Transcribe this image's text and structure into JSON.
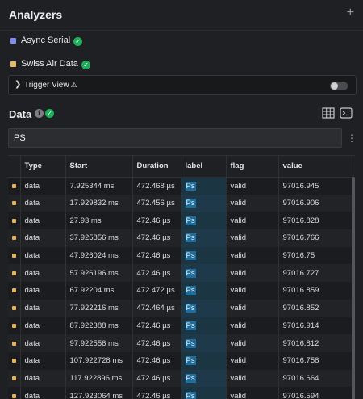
{
  "header": {
    "title": "Analyzers",
    "add_icon": "plus-icon"
  },
  "analyzers": [
    {
      "name": "Async Serial",
      "color": "#7d8ff0",
      "status": "check-icon"
    },
    {
      "name": "Swiss Air Data",
      "color": "#e8b86a",
      "status": "check-icon"
    }
  ],
  "trigger": {
    "label": "Trigger View",
    "warning": "⚠",
    "enabled": false
  },
  "data_panel": {
    "title": "Data",
    "info_glyph": "i",
    "search_value": "PS",
    "table": {
      "columns": [
        "Type",
        "Start",
        "Duration",
        "label",
        "flag",
        "value"
      ],
      "rows": [
        [
          "data",
          "7.925344 ms",
          "472.468 µs",
          "Ps",
          "valid",
          "97016.945"
        ],
        [
          "data",
          "17.929832 ms",
          "472.456 µs",
          "Ps",
          "valid",
          "97016.906"
        ],
        [
          "data",
          "27.93 ms",
          "472.46 µs",
          "Ps",
          "valid",
          "97016.828"
        ],
        [
          "data",
          "37.925856 ms",
          "472.46 µs",
          "Ps",
          "valid",
          "97016.766"
        ],
        [
          "data",
          "47.926024 ms",
          "472.46 µs",
          "Ps",
          "valid",
          "97016.75"
        ],
        [
          "data",
          "57.926196 ms",
          "472.46 µs",
          "Ps",
          "valid",
          "97016.727"
        ],
        [
          "data",
          "67.92204 ms",
          "472.472 µs",
          "Ps",
          "valid",
          "97016.859"
        ],
        [
          "data",
          "77.922216 ms",
          "472.464 µs",
          "Ps",
          "valid",
          "97016.852"
        ],
        [
          "data",
          "87.922388 ms",
          "472.46 µs",
          "Ps",
          "valid",
          "97016.914"
        ],
        [
          "data",
          "97.922556 ms",
          "472.46 µs",
          "Ps",
          "valid",
          "97016.812"
        ],
        [
          "data",
          "107.922728 ms",
          "472.46 µs",
          "Ps",
          "valid",
          "97016.758"
        ],
        [
          "data",
          "117.922896 ms",
          "472.46 µs",
          "Ps",
          "valid",
          "97016.664"
        ],
        [
          "data",
          "127.923064 ms",
          "472.46 µs",
          "Ps",
          "valid",
          "97016.594"
        ]
      ]
    }
  },
  "colors": {
    "accent": "#1d6e9e",
    "success": "#1fae5a",
    "row_marker": "#e2b45a"
  }
}
